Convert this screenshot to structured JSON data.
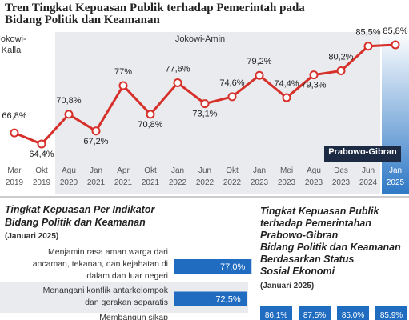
{
  "chart_data": [
    {
      "type": "line",
      "title": [
        "Tren Tingkat Kepuasan Publik terhadap Pemerintah pada",
        "Bidang Politik dan Keamanan"
      ],
      "periods": [
        [
          "Jokowi-",
          "Kalla"
        ],
        [
          "Jokowi-Amin"
        ],
        [
          "Prabowo-Gibran"
        ]
      ],
      "categories": [
        [
          "Mar",
          "2019"
        ],
        [
          "Okt",
          "2019"
        ],
        [
          "Agu",
          "2020"
        ],
        [
          "Jan",
          "2021"
        ],
        [
          "Apr",
          "2021"
        ],
        [
          "Okt",
          "2021"
        ],
        [
          "Jan",
          "2022"
        ],
        [
          "Jun",
          "2022"
        ],
        [
          "Okt",
          "2022"
        ],
        [
          "Jan",
          "2023"
        ],
        [
          "Mei",
          "2023"
        ],
        [
          "Agu",
          "2023"
        ],
        [
          "Des",
          "2023"
        ],
        [
          "Jun",
          "2024"
        ],
        [
          "Jan",
          "2025"
        ]
      ],
      "values": [
        66.8,
        64.4,
        70.8,
        67.2,
        77,
        70.8,
        77.6,
        73.1,
        74.6,
        79.2,
        74.4,
        79.3,
        80.2,
        85.5,
        85.8
      ],
      "value_labels": [
        "66,8%",
        "64,4%",
        "70,8%",
        "67,2%",
        "77%",
        "70,8%",
        "77,6%",
        "73,1%",
        "74,6%",
        "79,2%",
        "74,4%",
        "79,3%",
        "80,2%",
        "85,5%",
        "85,8%"
      ],
      "color": "#d7302a"
    },
    {
      "type": "hbar",
      "title": [
        "Tingkat Kepuasan Per Indikator",
        "Bidang Politik dan Keamanan"
      ],
      "subtitle": "(Januari 2025)",
      "categories": [
        [
          "Menjamin rasa aman warga dari",
          "ancaman, tekanan, dan kejahatan di",
          "dalam dan luar negeri"
        ],
        [
          "Menangani konflik antarkelompok",
          "dan gerakan separatis"
        ],
        [
          "Membangun sikap"
        ]
      ],
      "values": [
        77.0,
        72.5,
        null
      ],
      "value_labels": [
        "77,0%",
        "72,5%",
        null
      ],
      "color": "#1f6cc0"
    },
    {
      "type": "column",
      "title": [
        "Tingkat Kepuasan Publik",
        "terhadap Pemerintahan",
        "Prabowo-Gibran",
        "Bidang Politik dan Keamanan",
        "Berdasarkan Status",
        "Sosial Ekonomi"
      ],
      "subtitle": "(Januari 2025)",
      "values": [
        86.1,
        87.5,
        85.0,
        85.9
      ],
      "value_labels": [
        "86,1%",
        "87,5%",
        "85,0%",
        "85,9%"
      ],
      "color": "#1f6cc0"
    }
  ]
}
